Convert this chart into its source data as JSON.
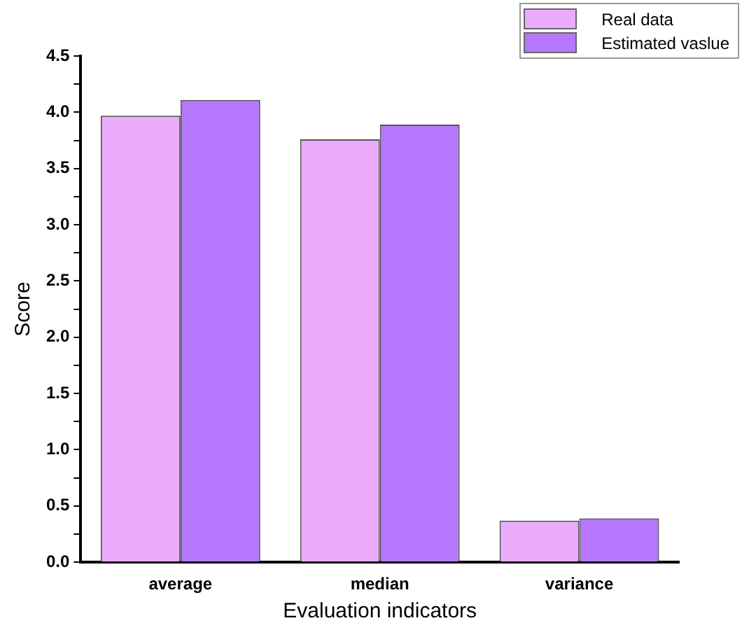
{
  "chart_data": {
    "type": "bar",
    "xlabel": "Evaluation indicators",
    "ylabel": "Score",
    "categories": [
      "average",
      "median",
      "variance"
    ],
    "series": [
      {
        "name": "Real data",
        "color": "#ebabfc",
        "values": [
          3.97,
          3.76,
          0.37
        ]
      },
      {
        "name": "Estimated vaslue",
        "color": "#b676fd",
        "values": [
          4.11,
          3.89,
          0.39
        ]
      }
    ],
    "ylim": [
      0,
      4.5
    ],
    "yticks": [
      {
        "value": 0,
        "label": "0.0"
      },
      {
        "value": 0.25,
        "label": null
      },
      {
        "value": 0.5,
        "label": "0.5"
      },
      {
        "value": 0.75,
        "label": null
      },
      {
        "value": 1,
        "label": "1.0"
      },
      {
        "value": 1.25,
        "label": null
      },
      {
        "value": 1.5,
        "label": "1.5"
      },
      {
        "value": 1.75,
        "label": null
      },
      {
        "value": 2,
        "label": "2.0"
      },
      {
        "value": 2.25,
        "label": null
      },
      {
        "value": 2.5,
        "label": "2.5"
      },
      {
        "value": 2.75,
        "label": null
      },
      {
        "value": 3,
        "label": "3.0"
      },
      {
        "value": 3.25,
        "label": null
      },
      {
        "value": 3.5,
        "label": "3.5"
      },
      {
        "value": 3.75,
        "label": null
      },
      {
        "value": 4,
        "label": "4.0"
      },
      {
        "value": 4.25,
        "label": null
      },
      {
        "value": 4.5,
        "label": "4.5"
      }
    ],
    "grid": false,
    "legend": "top right"
  }
}
